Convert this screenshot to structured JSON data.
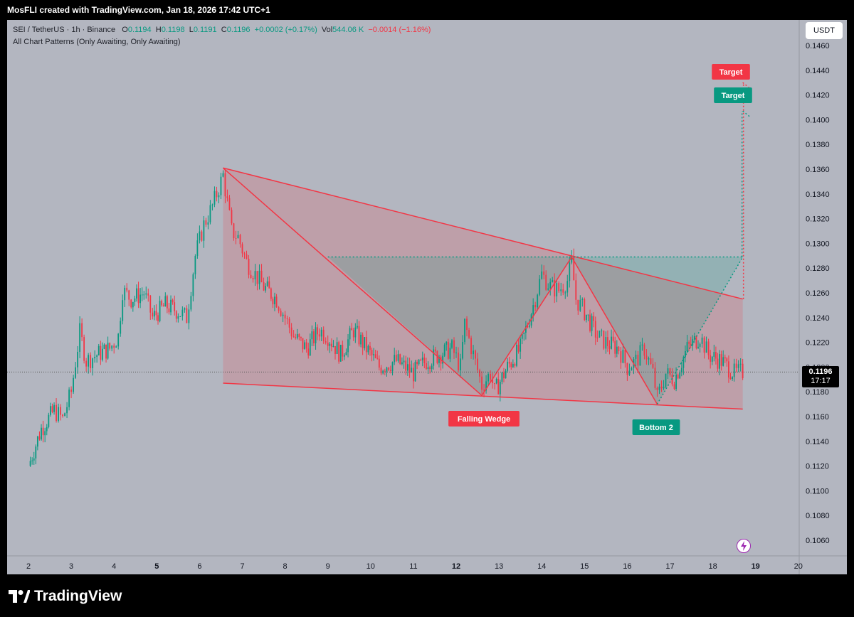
{
  "header": {
    "caption": "MosFLI created with TradingView.com, Jan 18, 2026 17:42 UTC+1"
  },
  "legend": {
    "symbol": "SEI / TetherUS · 1h · Binance",
    "o_label": "O",
    "o_value": "0.1194",
    "h_label": "H",
    "h_value": "0.1198",
    "l_label": "L",
    "l_value": "0.1191",
    "c_label": "C",
    "c_value": "0.1196",
    "change": "+0.0002 (+0.17%)",
    "vol_label": "Vol",
    "vol_value": "544.06 K",
    "vol_change": "−0.0014 (−1.16%)",
    "indicator": "All Chart Patterns (Only Awaiting, Only Awaiting)"
  },
  "currency_button": "USDT",
  "last_price": {
    "value": "0.1196",
    "countdown": "17:17"
  },
  "brand": "TradingView",
  "icons": {
    "logo": "tradingview-logo-icon",
    "alert": "lightning-icon"
  },
  "colors": {
    "up": "#089981",
    "down": "#f23645",
    "background": "#b3b6c0",
    "wedge_fill": "#f2364533",
    "bottom_fill": "#08998133"
  },
  "chart_data": {
    "type": "candlestick",
    "title": "SEI / TetherUS · 1h · Binance",
    "x_ticks": [
      "2",
      "3",
      "4",
      "5",
      "6",
      "7",
      "8",
      "9",
      "10",
      "11",
      "12",
      "13",
      "14",
      "15",
      "16",
      "17",
      "18",
      "19",
      "20"
    ],
    "y_ticks": [
      "0.1460",
      "0.1440",
      "0.1420",
      "0.1400",
      "0.1380",
      "0.1360",
      "0.1340",
      "0.1320",
      "0.1300",
      "0.1280",
      "0.1260",
      "0.1240",
      "0.1220",
      "0.1200",
      "0.1180",
      "0.1160",
      "0.1140",
      "0.1120",
      "0.1100",
      "0.1080",
      "0.1060"
    ],
    "ylim": [
      0.1047,
      0.1469
    ],
    "price_path": [
      [
        2.0,
        0.112
      ],
      [
        2.3,
        0.115
      ],
      [
        2.6,
        0.1165
      ],
      [
        2.8,
        0.1158
      ],
      [
        3.0,
        0.118
      ],
      [
        3.2,
        0.1228
      ],
      [
        3.35,
        0.1205
      ],
      [
        3.6,
        0.121
      ],
      [
        3.9,
        0.1215
      ],
      [
        4.1,
        0.1225
      ],
      [
        4.2,
        0.1262
      ],
      [
        4.4,
        0.1255
      ],
      [
        4.7,
        0.126
      ],
      [
        4.9,
        0.124
      ],
      [
        5.2,
        0.125
      ],
      [
        5.5,
        0.1245
      ],
      [
        5.7,
        0.124
      ],
      [
        5.9,
        0.129
      ],
      [
        6.1,
        0.1315
      ],
      [
        6.3,
        0.133
      ],
      [
        6.55,
        0.1355
      ],
      [
        6.75,
        0.131
      ],
      [
        6.9,
        0.1305
      ],
      [
        7.1,
        0.1285
      ],
      [
        7.3,
        0.1275
      ],
      [
        7.5,
        0.1265
      ],
      [
        7.8,
        0.1255
      ],
      [
        8.0,
        0.124
      ],
      [
        8.2,
        0.1225
      ],
      [
        8.5,
        0.1215
      ],
      [
        8.8,
        0.123
      ],
      [
        9.0,
        0.1225
      ],
      [
        9.3,
        0.121
      ],
      [
        9.6,
        0.123
      ],
      [
        9.9,
        0.1215
      ],
      [
        10.2,
        0.12
      ],
      [
        10.6,
        0.1205
      ],
      [
        11.0,
        0.1195
      ],
      [
        11.3,
        0.1205
      ],
      [
        11.6,
        0.121
      ],
      [
        11.9,
        0.1215
      ],
      [
        12.1,
        0.12
      ],
      [
        12.2,
        0.1235
      ],
      [
        12.4,
        0.121
      ],
      [
        12.6,
        0.1185
      ],
      [
        12.8,
        0.1195
      ],
      [
        12.9,
        0.118
      ],
      [
        13.2,
        0.12
      ],
      [
        13.5,
        0.1215
      ],
      [
        13.8,
        0.125
      ],
      [
        14.0,
        0.1275
      ],
      [
        14.2,
        0.1265
      ],
      [
        14.4,
        0.1262
      ],
      [
        14.6,
        0.127
      ],
      [
        14.7,
        0.1285
      ],
      [
        14.8,
        0.1255
      ],
      [
        15.0,
        0.1245
      ],
      [
        15.3,
        0.1225
      ],
      [
        15.5,
        0.122
      ],
      [
        15.8,
        0.1215
      ],
      [
        16.0,
        0.12
      ],
      [
        16.2,
        0.1205
      ],
      [
        16.4,
        0.1215
      ],
      [
        16.6,
        0.1195
      ],
      [
        16.7,
        0.1175
      ],
      [
        16.9,
        0.1195
      ],
      [
        17.1,
        0.119
      ],
      [
        17.4,
        0.1215
      ],
      [
        17.7,
        0.1225
      ],
      [
        17.9,
        0.121
      ],
      [
        18.2,
        0.1205
      ],
      [
        18.5,
        0.1195
      ],
      [
        18.7,
        0.1196
      ]
    ],
    "patterns": [
      {
        "name": "Falling Wedge",
        "color": "#f23645",
        "upper_line": [
          [
            6.55,
            0.1361
          ],
          [
            18.7,
            0.1255
          ]
        ],
        "lower_line": [
          [
            6.55,
            0.1187
          ],
          [
            18.7,
            0.1166
          ]
        ],
        "zigzag": [
          [
            6.55,
            0.1361
          ],
          [
            12.6,
            0.1177
          ],
          [
            14.7,
            0.1289
          ],
          [
            16.7,
            0.117
          ]
        ],
        "target": 0.143,
        "target_label": "Target"
      },
      {
        "name": "Bottom 2",
        "color": "#089981",
        "neckline": 0.1289,
        "neckline_x": [
          9.0,
          18.7
        ],
        "bottoms": [
          [
            12.6,
            0.1177
          ],
          [
            16.7,
            0.117
          ]
        ],
        "target": 0.1407,
        "target_label": "Target"
      }
    ]
  }
}
